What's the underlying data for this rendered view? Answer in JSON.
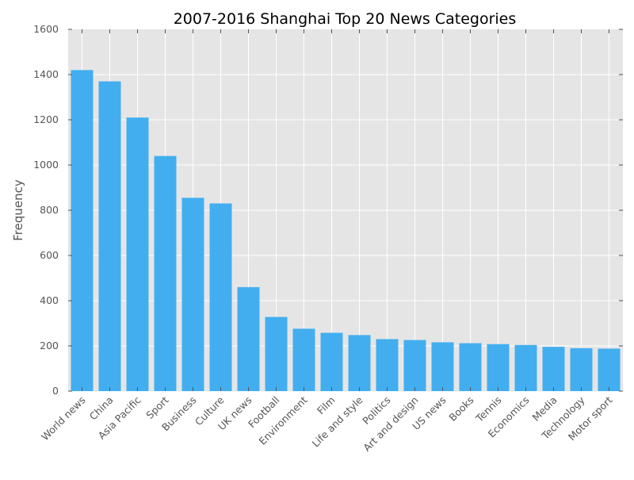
{
  "chart_data": {
    "type": "bar",
    "title": "2007-2016 Shanghai Top 20 News Categories",
    "xlabel": "",
    "ylabel": "Frequency",
    "ylim": [
      0,
      1600
    ],
    "yticks": [
      0,
      200,
      400,
      600,
      800,
      1000,
      1200,
      1400,
      1600
    ],
    "grid": true,
    "categories": [
      "World news",
      "China",
      "Asia Pacific",
      "Sport",
      "Business",
      "Culture",
      "UK news",
      "Football",
      "Environment",
      "Film",
      "Life and style",
      "Politics",
      "Art and design",
      "US news",
      "Books",
      "Tennis",
      "Economics",
      "Media",
      "Technology",
      "Motor sport"
    ],
    "values": [
      1420,
      1370,
      1210,
      1040,
      855,
      830,
      460,
      328,
      276,
      258,
      248,
      230,
      226,
      216,
      212,
      208,
      204,
      196,
      190,
      188
    ],
    "bar_color": "#42aef0",
    "background_color": "#e5e5e5",
    "grid_color": "#ffffff"
  }
}
